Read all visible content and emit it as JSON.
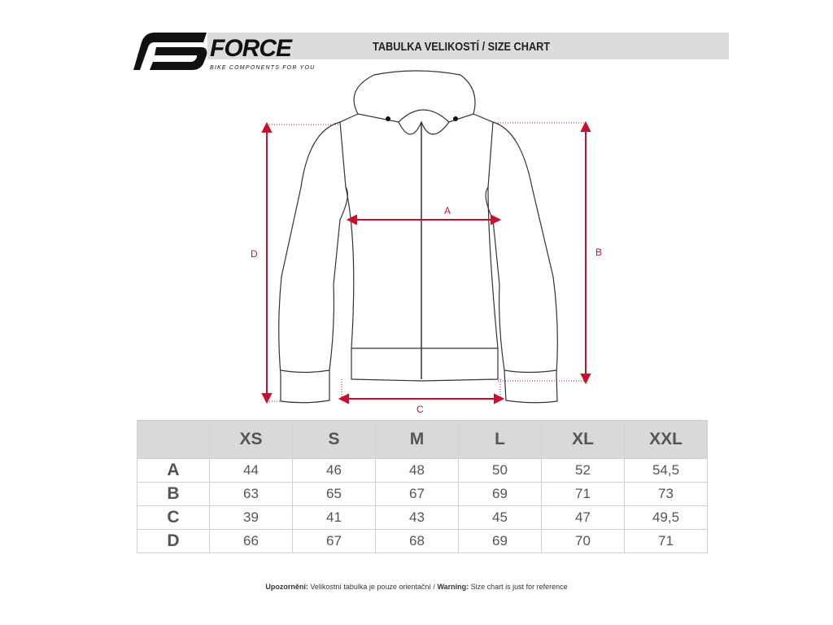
{
  "brand": {
    "name": "FORCE",
    "tagline": "BIKE COMPONENTS FOR YOU"
  },
  "title": "TABULKA VELIKOSTÍ / SIZE CHART",
  "diagram": {
    "labels": {
      "A": "A",
      "B": "B",
      "C": "C",
      "D": "D"
    },
    "arrow_color": "#c8102e"
  },
  "table": {
    "headers": [
      "XS",
      "S",
      "M",
      "L",
      "XL",
      "XXL"
    ],
    "rows": [
      {
        "label": "A",
        "values": [
          "44",
          "46",
          "48",
          "50",
          "52",
          "54,5"
        ]
      },
      {
        "label": "B",
        "values": [
          "63",
          "65",
          "67",
          "69",
          "71",
          "73"
        ]
      },
      {
        "label": "C",
        "values": [
          "39",
          "41",
          "43",
          "45",
          "47",
          "49,5"
        ]
      },
      {
        "label": "D",
        "values": [
          "66",
          "67",
          "68",
          "69",
          "70",
          "71"
        ]
      }
    ]
  },
  "footer": {
    "warning_cz_label": "Upozornění:",
    "warning_cz": " Velikostní tabulka je pouze orientační / ",
    "warning_en_label": "Warning:",
    "warning_en": " Size chart is just for reference"
  }
}
